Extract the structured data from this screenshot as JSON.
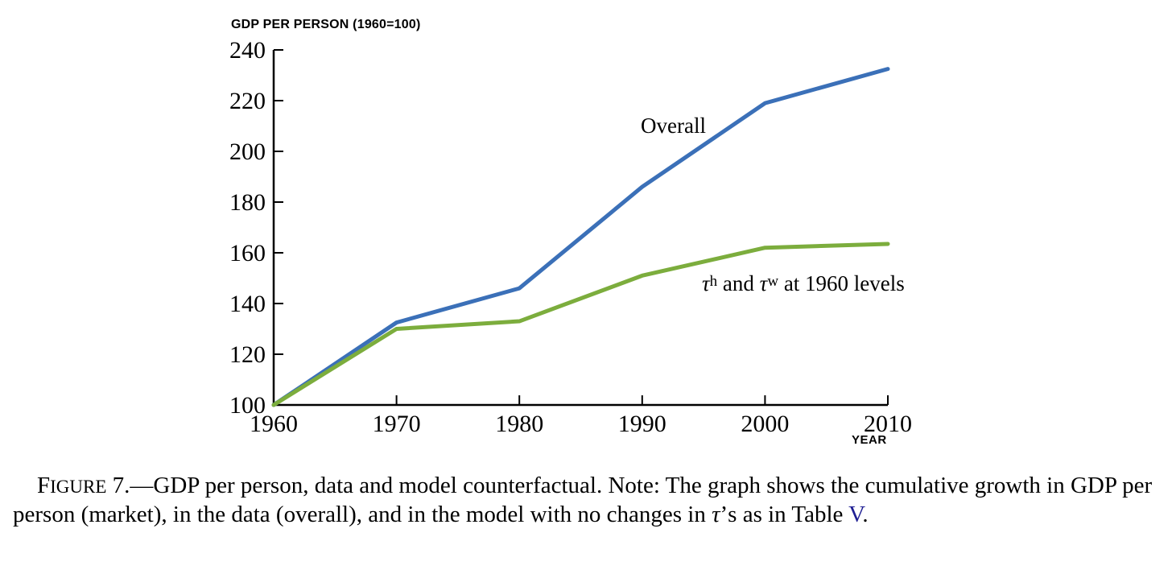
{
  "chart": {
    "y_axis_title": "GDP PER PERSON (1960=100)",
    "x_axis_title": "YEAR",
    "labels": {
      "tau_1": "τ",
      "tau_1_sup": "h",
      "tau_mid": " and ",
      "tau_2": "τ",
      "tau_2_sup": "w",
      "tau_rest": " at 1960 levels"
    }
  },
  "chart_data": {
    "type": "line",
    "title": "GDP PER PERSON (1960=100)",
    "xlabel": "YEAR",
    "ylabel": "GDP PER PERSON (1960=100)",
    "x": [
      1960,
      1970,
      1980,
      1990,
      2000,
      2010
    ],
    "xticks": [
      "1960",
      "1970",
      "1980",
      "1990",
      "2000",
      "2010"
    ],
    "yticks": [
      100,
      120,
      140,
      160,
      180,
      200,
      220,
      240
    ],
    "xlim": [
      1960,
      2010
    ],
    "ylim": [
      100,
      240
    ],
    "grid": false,
    "legend_position": "inline-annotations",
    "series": [
      {
        "name": "Overall",
        "color": "#3B70B8",
        "values": [
          100,
          132.5,
          146,
          186,
          219,
          232.5
        ]
      },
      {
        "name": "τ^h and τ^w at 1960 levels",
        "color": "#7CAD3D",
        "values": [
          100,
          130,
          133,
          151,
          162,
          163.5
        ]
      }
    ],
    "annotations": [
      {
        "text": "Overall",
        "x": 1989.5,
        "y": 212
      },
      {
        "text": "τ^h and τ^w at 1960 levels",
        "x": 1995,
        "y": 147
      }
    ]
  },
  "caption": {
    "figure_word_first": "F",
    "figure_word_rest": "IGURE",
    "figure_number": " 7.—",
    "text_1": "GDP per person, data and model counterfactual. Note: The graph shows the cumulative growth in GDP per person (market), in the data (overall), and in the model with no changes in ",
    "tau": "τ",
    "text_2": "’s as in Table ",
    "table_link": "V",
    "text_3": ".",
    "link_color": "#1F1F93"
  }
}
